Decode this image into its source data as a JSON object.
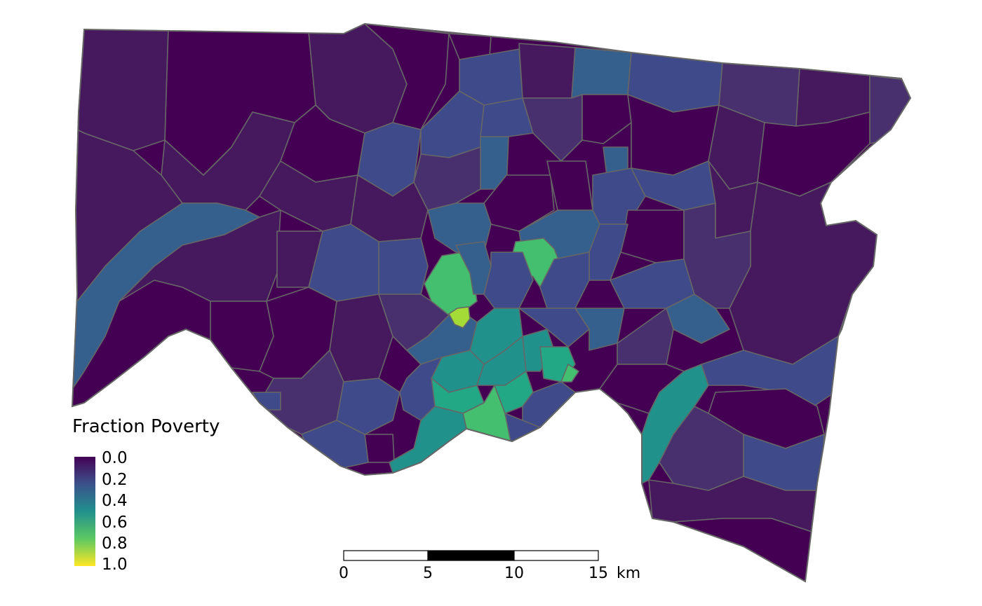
{
  "legend": {
    "title": "Fraction Poverty",
    "labels": [
      "0.0",
      "0.2",
      "0.4",
      "0.6",
      "0.8",
      "1.0"
    ],
    "colors": [
      "#440154",
      "#3b528b",
      "#21908c",
      "#5dc863",
      "#fde725"
    ]
  },
  "scale_bar": {
    "labels": [
      "0",
      "5",
      "10",
      "15"
    ],
    "unit": "km"
  },
  "map_colors": {
    "very_low": "#440154",
    "low": "#46195e",
    "low_mid": "#48306e",
    "mid_low": "#3e4a89",
    "mid": "#355f8d",
    "mid_high": "#2a788e",
    "teal": "#21918c",
    "green_teal": "#22a884",
    "green": "#44bf70",
    "yellow_green": "#a5db36"
  },
  "outline_color": "#666666"
}
